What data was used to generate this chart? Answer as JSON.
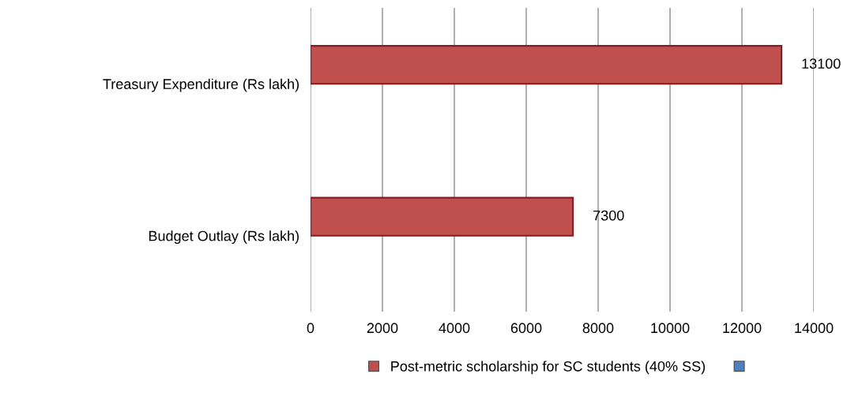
{
  "chart_data": {
    "type": "bar",
    "orientation": "horizontal",
    "categories": [
      "Treasury Expenditure (Rs lakh)",
      "Budget Outlay (Rs lakh)"
    ],
    "series": [
      {
        "name": "Post-metric scholarship for SC students (40% SS)",
        "color": "#c0504d",
        "values": [
          13100,
          7300
        ]
      },
      {
        "color": "#4f81bd",
        "values": [
          null,
          null
        ]
      }
    ],
    "xlim": [
      0,
      14000
    ],
    "xticks": [
      0,
      2000,
      4000,
      6000,
      8000,
      10000,
      12000,
      14000
    ],
    "grid": "x",
    "legend": "bottom",
    "data_labels": true
  }
}
